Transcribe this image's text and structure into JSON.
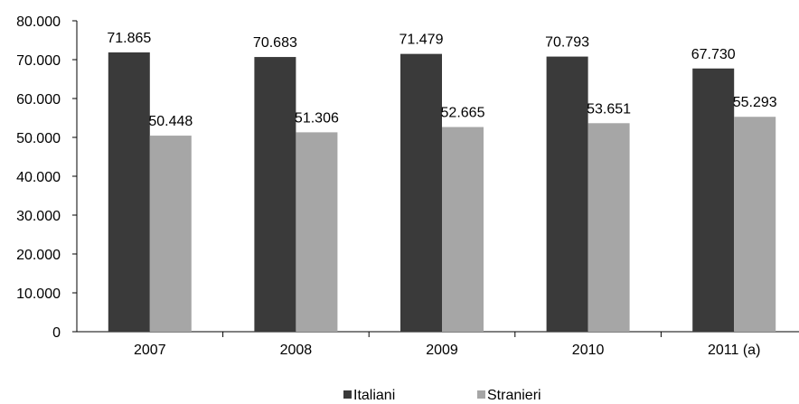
{
  "chart_data": {
    "type": "bar",
    "categories": [
      "2007",
      "2008",
      "2009",
      "2010",
      "2011 (a)"
    ],
    "series": [
      {
        "name": "Italiani",
        "values": [
          71865,
          70683,
          71479,
          70793,
          67730
        ],
        "color": "#3a3a3a"
      },
      {
        "name": "Stranieri",
        "values": [
          50448,
          51306,
          52665,
          53651,
          55293
        ],
        "color": "#a6a6a6"
      }
    ],
    "data_labels": [
      [
        "71.865",
        "70.683",
        "71.479",
        "70.793",
        "67.730"
      ],
      [
        "50.448",
        "51.306",
        "52.665",
        "53.651",
        "55.293"
      ]
    ],
    "yticks": [
      "0",
      "10.000",
      "20.000",
      "30.000",
      "40.000",
      "50.000",
      "60.000",
      "70.000",
      "80.000"
    ],
    "ylim": [
      0,
      80000
    ],
    "grid": false,
    "legend_position": "bottom-center",
    "title": "",
    "xlabel": "",
    "ylabel": ""
  }
}
